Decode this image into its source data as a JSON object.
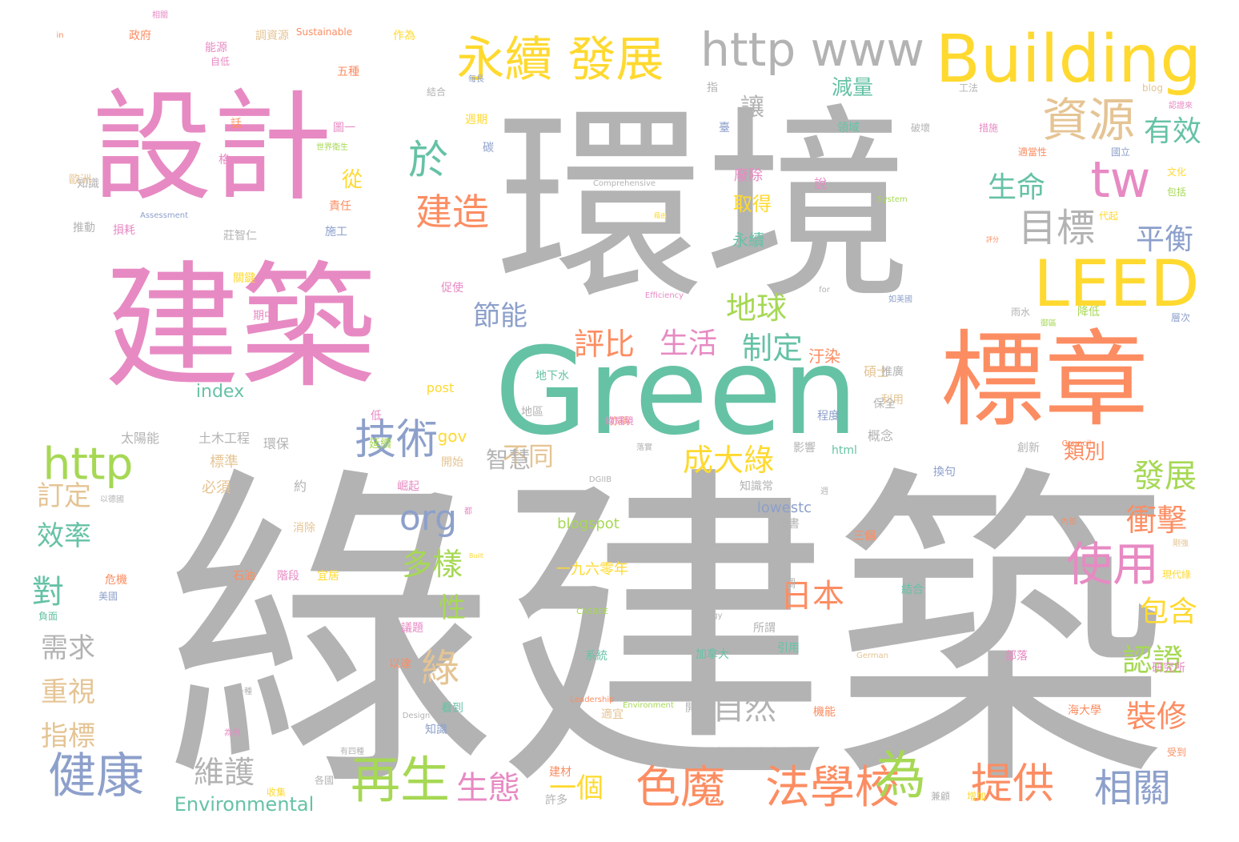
{
  "palette": {
    "gray": "#b3b3b3",
    "pink": "#e78ac3",
    "teal": "#66c2a5",
    "orange": "#fc8d62",
    "blue": "#8da0cb",
    "green": "#a6d854",
    "yellow": "#ffd92f",
    "tan": "#e5c494"
  },
  "words": [
    {
      "text": "綠建築",
      "color": "gray",
      "weight": 1.0
    },
    {
      "text": "環境",
      "color": "gray",
      "weight": 0.95
    },
    {
      "text": "建築",
      "color": "pink",
      "weight": 0.85
    },
    {
      "text": "設計",
      "color": "pink",
      "weight": 0.7
    },
    {
      "text": "Green",
      "color": "teal",
      "weight": 0.62
    },
    {
      "text": "標章",
      "color": "orange",
      "weight": 0.58
    },
    {
      "text": "Building",
      "color": "yellow",
      "weight": 0.4
    },
    {
      "text": "LEED",
      "color": "yellow",
      "weight": 0.33
    },
    {
      "text": "http www",
      "color": "gray",
      "weight": 0.3
    },
    {
      "text": "永續 發展",
      "color": "yellow",
      "weight": 0.3
    },
    {
      "text": "資源",
      "color": "tan",
      "weight": 0.28
    },
    {
      "text": "tw",
      "color": "pink",
      "weight": 0.27
    },
    {
      "text": "http",
      "color": "green",
      "weight": 0.26
    },
    {
      "text": "技術",
      "color": "blue",
      "weight": 0.24
    },
    {
      "text": "使用",
      "color": "pink",
      "weight": 0.24
    },
    {
      "text": "再生",
      "color": "green",
      "weight": 0.24
    },
    {
      "text": "健康",
      "color": "blue",
      "weight": 0.23
    },
    {
      "text": "色魔",
      "color": "orange",
      "weight": 0.23
    },
    {
      "text": "法學校",
      "color": "orange",
      "weight": 0.23
    },
    {
      "text": "為",
      "color": "green",
      "weight": 0.23
    },
    {
      "text": "提供",
      "color": "orange",
      "weight": 0.22
    },
    {
      "text": "相關",
      "color": "blue",
      "weight": 0.2
    },
    {
      "text": "目標",
      "color": "gray",
      "weight": 0.2
    },
    {
      "text": "於",
      "color": "teal",
      "weight": 0.2
    },
    {
      "text": "建造",
      "color": "orange",
      "weight": 0.18
    },
    {
      "text": "生命",
      "color": "teal",
      "weight": 0.17
    },
    {
      "text": "平衡",
      "color": "blue",
      "weight": 0.17
    },
    {
      "text": "有效",
      "color": "teal",
      "weight": 0.17
    },
    {
      "text": "成大綠",
      "color": "yellow",
      "weight": 0.17
    },
    {
      "text": "org",
      "color": "blue",
      "weight": 0.17
    },
    {
      "text": "多樣",
      "color": "green",
      "weight": 0.17
    },
    {
      "text": "發展",
      "color": "green",
      "weight": 0.17
    },
    {
      "text": "衝擊",
      "color": "orange",
      "weight": 0.16
    },
    {
      "text": "認證",
      "color": "green",
      "weight": 0.16
    },
    {
      "text": "包含",
      "color": "yellow",
      "weight": 0.16
    },
    {
      "text": "裝修",
      "color": "orange",
      "weight": 0.16
    },
    {
      "text": "日本",
      "color": "orange",
      "weight": 0.16
    },
    {
      "text": "自然",
      "color": "gray",
      "weight": 0.16
    },
    {
      "text": "生態",
      "color": "pink",
      "weight": 0.16
    },
    {
      "text": "維護",
      "color": "gray",
      "weight": 0.16
    },
    {
      "text": "一個",
      "color": "yellow",
      "weight": 0.16
    },
    {
      "text": "生活",
      "color": "pink",
      "weight": 0.15
    },
    {
      "text": "制定",
      "color": "teal",
      "weight": 0.15
    },
    {
      "text": "評比",
      "color": "orange",
      "weight": 0.15
    },
    {
      "text": "地球",
      "color": "green",
      "weight": 0.15
    },
    {
      "text": "節能",
      "color": "blue",
      "weight": 0.15
    },
    {
      "text": "不同",
      "color": "tan",
      "weight": 0.15
    },
    {
      "text": "效率",
      "color": "teal",
      "weight": 0.15
    },
    {
      "text": "重視",
      "color": "tan",
      "weight": 0.15
    },
    {
      "text": "指標",
      "color": "tan",
      "weight": 0.15
    },
    {
      "text": "需求",
      "color": "gray",
      "weight": 0.15
    },
    {
      "text": "對",
      "color": "teal",
      "weight": 0.15
    },
    {
      "text": "訂定",
      "color": "tan",
      "weight": 0.14
    },
    {
      "text": "綠",
      "color": "tan",
      "weight": 0.14
    },
    {
      "text": "性",
      "color": "green",
      "weight": 0.14
    },
    {
      "text": "讓",
      "color": "gray",
      "weight": 0.12
    },
    {
      "text": "從",
      "color": "yellow",
      "weight": 0.12
    },
    {
      "text": "類別",
      "color": "orange",
      "weight": 0.11
    },
    {
      "text": "減量",
      "color": "teal",
      "weight": 0.1
    },
    {
      "text": "index",
      "color": "teal",
      "weight": 0.1
    },
    {
      "text": "Environmental",
      "color": "teal",
      "weight": 0.1
    },
    {
      "text": "智慧",
      "color": "gray",
      "weight": 0.1
    },
    {
      "text": "gov",
      "color": "yellow",
      "weight": 0.09
    },
    {
      "text": "blogspot",
      "color": "green",
      "weight": 0.09
    },
    {
      "text": "lowestc",
      "color": "blue",
      "weight": 0.09
    },
    {
      "text": "一九六零年",
      "color": "yellow",
      "weight": 0.08
    },
    {
      "text": "取得",
      "color": "yellow",
      "weight": 0.08
    },
    {
      "text": "廢除",
      "color": "pink",
      "weight": 0.08
    },
    {
      "text": "永續",
      "color": "teal",
      "weight": 0.08
    },
    {
      "text": "汙染",
      "color": "orange",
      "weight": 0.08
    },
    {
      "text": "碩士",
      "color": "tan",
      "weight": 0.08
    },
    {
      "text": "太陽能",
      "color": "gray",
      "weight": 0.08
    },
    {
      "text": "土木工程",
      "color": "gray",
      "weight": 0.08
    },
    {
      "text": "環保",
      "color": "gray",
      "weight": 0.08
    },
    {
      "text": "標準",
      "color": "tan",
      "weight": 0.08
    },
    {
      "text": "必須",
      "color": "tan",
      "weight": 0.08
    },
    {
      "text": "約",
      "color": "gray",
      "weight": 0.08
    },
    {
      "text": "開始",
      "color": "tan",
      "weight": 0.07
    },
    {
      "text": "崛起",
      "color": "pink",
      "weight": 0.07
    },
    {
      "text": "消除",
      "color": "tan",
      "weight": 0.07
    },
    {
      "text": "石油",
      "color": "orange",
      "weight": 0.07
    },
    {
      "text": "階段",
      "color": "pink",
      "weight": 0.07
    },
    {
      "text": "宜居",
      "color": "yellow",
      "weight": 0.07
    },
    {
      "text": "危機",
      "color": "orange",
      "weight": 0.07
    },
    {
      "text": "美國",
      "color": "blue",
      "weight": 0.06
    },
    {
      "text": "負面",
      "color": "teal",
      "weight": 0.06
    },
    {
      "text": "議題",
      "color": "pink",
      "weight": 0.06
    },
    {
      "text": "以達",
      "color": "orange",
      "weight": 0.06
    },
    {
      "text": "看到",
      "color": "teal",
      "weight": 0.06
    },
    {
      "text": "知識",
      "color": "blue",
      "weight": 0.06
    },
    {
      "text": "收集",
      "color": "yellow",
      "weight": 0.06
    },
    {
      "text": "各國",
      "color": "gray",
      "weight": 0.06
    },
    {
      "text": "建材",
      "color": "orange",
      "weight": 0.06
    },
    {
      "text": "許多",
      "color": "gray",
      "weight": 0.06
    },
    {
      "text": "系統",
      "color": "teal",
      "weight": 0.06
    },
    {
      "text": "加拿大",
      "color": "teal",
      "weight": 0.06
    },
    {
      "text": "引用",
      "color": "teal",
      "weight": 0.06
    },
    {
      "text": "所謂",
      "color": "gray",
      "weight": 0.06
    },
    {
      "text": "開啟",
      "color": "gray",
      "weight": 0.06
    },
    {
      "text": "適宜",
      "color": "tan",
      "weight": 0.06
    },
    {
      "text": "機能",
      "color": "orange",
      "weight": 0.06
    },
    {
      "text": "部落",
      "color": "pink",
      "weight": 0.06
    },
    {
      "text": "研究所",
      "color": "pink",
      "weight": 0.06
    },
    {
      "text": "海大學",
      "color": "orange",
      "weight": 0.06
    },
    {
      "text": "結合",
      "color": "teal",
      "weight": 0.06
    },
    {
      "text": "強調",
      "color": "gray",
      "weight": 0.06
    },
    {
      "text": "三個",
      "color": "orange",
      "weight": 0.06
    },
    {
      "text": "權書",
      "color": "gray",
      "weight": 0.06
    },
    {
      "text": "知識常",
      "color": "gray",
      "weight": 0.06
    },
    {
      "text": "換句",
      "color": "blue",
      "weight": 0.06
    },
    {
      "text": "創新",
      "color": "gray",
      "weight": 0.06
    },
    {
      "text": "利用",
      "color": "tan",
      "weight": 0.06
    },
    {
      "text": "推廣",
      "color": "gray",
      "weight": 0.06
    },
    {
      "text": "概念",
      "color": "gray",
      "weight": 0.06
    },
    {
      "text": "程度",
      "color": "blue",
      "weight": 0.05
    },
    {
      "text": "保全",
      "color": "gray",
      "weight": 0.05
    },
    {
      "text": "影響",
      "color": "gray",
      "weight": 0.05
    },
    {
      "text": "地區",
      "color": "gray",
      "weight": 0.05
    },
    {
      "text": "地下水",
      "color": "teal",
      "weight": 0.05
    },
    {
      "text": "post",
      "color": "yellow",
      "weight": 0.05
    },
    {
      "text": "html",
      "color": "teal",
      "weight": 0.05
    },
    {
      "text": "延續",
      "color": "green",
      "weight": 0.05
    },
    {
      "text": "低",
      "color": "pink",
      "weight": 0.05
    },
    {
      "text": "促使",
      "color": "pink",
      "weight": 0.05
    },
    {
      "text": "期中",
      "color": "pink",
      "weight": 0.05
    },
    {
      "text": "關鍵",
      "color": "yellow",
      "weight": 0.05
    },
    {
      "text": "莊智仁",
      "color": "gray",
      "weight": 0.05
    },
    {
      "text": "損耗",
      "color": "pink",
      "weight": 0.05
    },
    {
      "text": "推動",
      "color": "gray",
      "weight": 0.05
    },
    {
      "text": "施工",
      "color": "blue",
      "weight": 0.05
    },
    {
      "text": "責任",
      "color": "orange",
      "weight": 0.05
    },
    {
      "text": "知識",
      "color": "gray",
      "weight": 0.05
    },
    {
      "text": "歐洲",
      "color": "tan",
      "weight": 0.05
    },
    {
      "text": "格",
      "color": "pink",
      "weight": 0.05
    },
    {
      "text": "話",
      "color": "orange",
      "weight": 0.05
    },
    {
      "text": "圖一",
      "color": "pink",
      "weight": 0.05
    },
    {
      "text": "碳",
      "color": "blue",
      "weight": 0.05
    },
    {
      "text": "週期",
      "color": "yellow",
      "weight": 0.05
    },
    {
      "text": "五種",
      "color": "orange",
      "weight": 0.05
    },
    {
      "text": "能源",
      "color": "pink",
      "weight": 0.05
    },
    {
      "text": "自低",
      "color": "pink",
      "weight": 0.05
    },
    {
      "text": "調資源",
      "color": "tan",
      "weight": 0.05
    },
    {
      "text": "政府",
      "color": "orange",
      "weight": 0.05
    },
    {
      "text": "作為",
      "color": "yellow",
      "weight": 0.05
    },
    {
      "text": "說",
      "color": "pink",
      "weight": 0.05
    },
    {
      "text": "指",
      "color": "gray",
      "weight": 0.05
    },
    {
      "text": "領域",
      "color": "teal",
      "weight": 0.05
    },
    {
      "text": "破壞",
      "color": "gray",
      "weight": 0.05
    },
    {
      "text": "措施",
      "color": "pink",
      "weight": 0.05
    },
    {
      "text": "適當性",
      "color": "orange",
      "weight": 0.05
    },
    {
      "text": "國立",
      "color": "blue",
      "weight": 0.05
    },
    {
      "text": "文化",
      "color": "yellow",
      "weight": 0.05
    },
    {
      "text": "包括",
      "color": "green",
      "weight": 0.05
    },
    {
      "text": "代起",
      "color": "yellow",
      "weight": 0.05
    },
    {
      "text": "雨水",
      "color": "gray",
      "weight": 0.05
    },
    {
      "text": "降低",
      "color": "green",
      "weight": 0.05
    },
    {
      "text": "層次",
      "color": "blue",
      "weight": 0.05
    },
    {
      "text": "現代綠",
      "color": "yellow",
      "weight": 0.05
    },
    {
      "text": "受到",
      "color": "orange",
      "weight": 0.05
    },
    {
      "text": "兼顧",
      "color": "gray",
      "weight": 0.05
    },
    {
      "text": "增加",
      "color": "yellow",
      "weight": 0.05
    },
    {
      "text": "臺",
      "color": "blue",
      "weight": 0.05
    },
    {
      "text": "blog",
      "color": "tan",
      "weight": 0.05
    },
    {
      "text": "工法",
      "color": "gray",
      "weight": 0.04
    },
    {
      "text": "結合",
      "color": "gray",
      "weight": 0.04
    },
    {
      "text": "Sustainable",
      "color": "orange",
      "weight": 0.04
    },
    {
      "text": "Comprehensive",
      "color": "gray",
      "weight": 0.03
    },
    {
      "text": "Assessment",
      "color": "blue",
      "weight": 0.03
    },
    {
      "text": "System",
      "color": "green",
      "weight": 0.03
    },
    {
      "text": "Efficiency",
      "color": "pink",
      "weight": 0.03
    },
    {
      "text": "DGIIB",
      "color": "gray",
      "weight": 0.03
    },
    {
      "text": "Council",
      "color": "orange",
      "weight": 0.03
    },
    {
      "text": "CASBEE",
      "color": "green",
      "weight": 0.03
    },
    {
      "text": "Energy",
      "color": "gray",
      "weight": 0.03
    },
    {
      "text": "German",
      "color": "tan",
      "weight": 0.03
    },
    {
      "text": "Leadership",
      "color": "orange",
      "weight": 0.03
    },
    {
      "text": "Environment",
      "color": "green",
      "weight": 0.03
    },
    {
      "text": "Design",
      "color": "gray",
      "weight": 0.03
    },
    {
      "text": "Built",
      "color": "yellow",
      "weight": 0.03
    },
    {
      "text": "for",
      "color": "gray",
      "weight": 0.03
    },
    {
      "text": "in",
      "color": "orange",
      "weight": 0.03
    },
    {
      "text": "世界衛生",
      "color": "green",
      "weight": 0.03
    },
    {
      "text": "以德國",
      "color": "gray",
      "weight": 0.03
    },
    {
      "text": "有四種",
      "color": "gray",
      "weight": 0.03
    },
    {
      "text": "每一種",
      "color": "gray",
      "weight": 0.03
    },
    {
      "text": "為例",
      "color": "pink",
      "weight": 0.03
    },
    {
      "text": "藉由",
      "color": "yellow",
      "weight": 0.03
    },
    {
      "text": "內部",
      "color": "orange",
      "weight": 0.03
    },
    {
      "text": "認證來",
      "color": "pink",
      "weight": 0.03
    },
    {
      "text": "如美國",
      "color": "blue",
      "weight": 0.03
    },
    {
      "text": "御區",
      "color": "green",
      "weight": 0.03
    },
    {
      "text": "週",
      "color": "gray",
      "weight": 0.03
    },
    {
      "text": "都",
      "color": "pink",
      "weight": 0.03
    },
    {
      "text": "落實",
      "color": "gray",
      "weight": 0.03
    },
    {
      "text": "剛強",
      "color": "tan",
      "weight": 0.03
    },
    {
      "text": "每長",
      "color": "blue",
      "weight": 0.03
    },
    {
      "text": "評分",
      "color": "orange",
      "weight": 0.03
    },
    {
      "text": "相關",
      "color": "pink",
      "weight": 0.03
    },
    {
      "text": "亦稱",
      "color": "orange",
      "weight": 0.03
    },
    {
      "text": "綠環境",
      "color": "pink",
      "weight": 0.03
    }
  ]
}
